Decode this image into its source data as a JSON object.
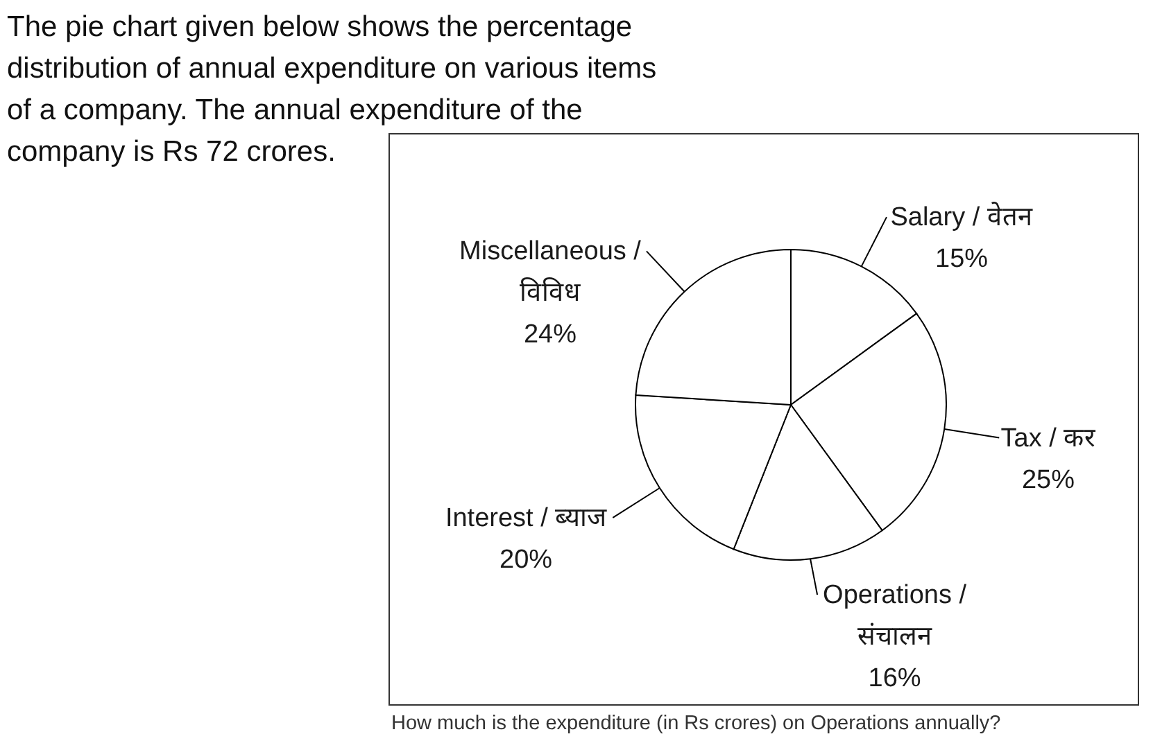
{
  "chart_data": {
    "type": "pie",
    "title": "The pie chart given below shows the percentage distribution of annual expenditure on various items of a company. The annual expenditure of the company is Rs 72 crores.",
    "categories": [
      "Salary / वेतन",
      "Tax / कर",
      "Operations / संचालन",
      "Interest / ब्याज",
      "Miscellaneous / विविध"
    ],
    "values": [
      15,
      25,
      16,
      20,
      24
    ],
    "colors": [
      "#ffffff",
      "#ffffff",
      "#ffffff",
      "#ffffff",
      "#ffffff"
    ],
    "value_labels": [
      "15%",
      "25%",
      "16%",
      "20%",
      "24%"
    ],
    "annotations": [
      "How much is the expenditure (in Rs crores) on Operations annually?"
    ]
  }
}
